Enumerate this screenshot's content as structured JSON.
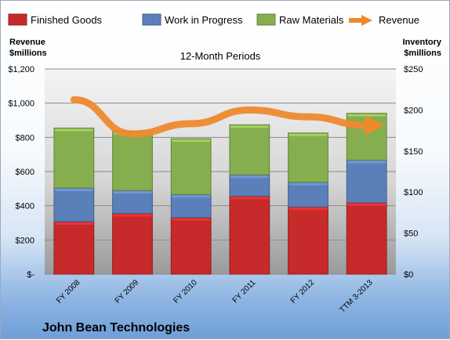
{
  "chart_data": {
    "type": "bar",
    "title": "John Bean Technologies",
    "subtitle": "12-Month Periods",
    "categories": [
      "FY 2008",
      "FY 2009",
      "FY 2010",
      "FY 2011",
      "FY 2012",
      "TTM 3-2013"
    ],
    "series": [
      {
        "name": "Finished Goods",
        "axis": "right",
        "stacked": true,
        "color": "#c62a2a",
        "values": [
          64,
          74,
          69,
          95,
          82,
          87
        ]
      },
      {
        "name": "Work in Progress",
        "axis": "right",
        "stacked": true,
        "color": "#5b7fb8",
        "values": [
          41,
          28,
          28,
          26,
          30,
          52
        ]
      },
      {
        "name": "Raw Materials",
        "axis": "right",
        "stacked": true,
        "color": "#86ae4f",
        "values": [
          73,
          72,
          68,
          61,
          60,
          57
        ]
      },
      {
        "name": "Revenue",
        "axis": "left",
        "type": "line",
        "color": "#ee8a2e",
        "values": [
          1020,
          820,
          880,
          960,
          920,
          870
        ]
      }
    ],
    "y_left": {
      "label": "Revenue\n$millions",
      "ylim": [
        0,
        1200
      ],
      "ticks": [
        0,
        200,
        400,
        600,
        800,
        1000,
        1200
      ],
      "tick_labels": [
        "$-",
        "$200",
        "$400",
        "$600",
        "$800",
        "$1,000",
        "$1,200"
      ]
    },
    "y_right": {
      "label": "Inventory\n$millions",
      "ylim": [
        0,
        250
      ],
      "ticks": [
        0,
        50,
        100,
        150,
        200,
        250
      ],
      "tick_labels": [
        "$0",
        "$50",
        "$100",
        "$150",
        "$200",
        "$250"
      ]
    },
    "grid": true,
    "legend": "top"
  }
}
